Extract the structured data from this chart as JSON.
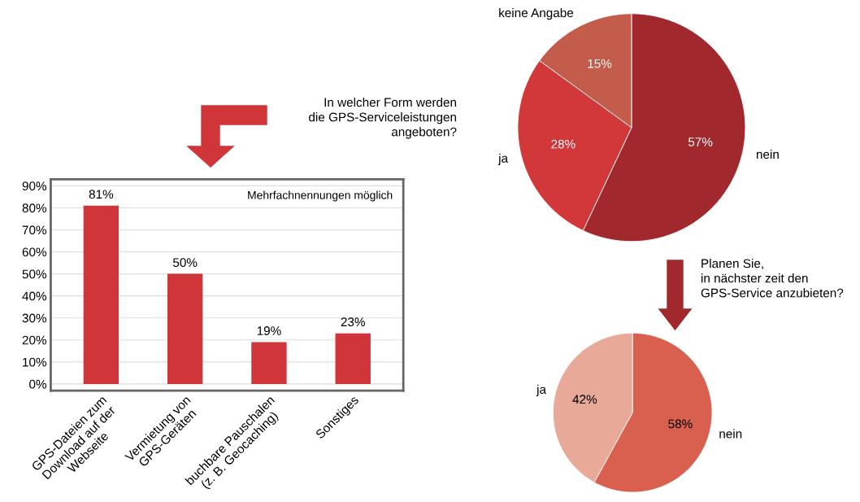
{
  "chart_data": [
    {
      "type": "bar",
      "title": "In welcher Form werden\ndie GPS-Serviceleistungen\nangeboten?",
      "categories": [
        "GPS-Dateien zum\nDownload auf der\nWebseite",
        "Vermietung von\nGPS-Geräten",
        "buchbare Pauschalen\n(z. B. Geocaching)",
        "Sonstiges"
      ],
      "values": [
        81,
        50,
        19,
        23
      ],
      "color": "#d0353a",
      "value_labels": [
        "81%",
        "50%",
        "19%",
        "23%"
      ],
      "ylim": [
        -3,
        93
      ],
      "yticks": [
        {
          "value": 0,
          "label": "0%"
        },
        {
          "value": 10,
          "label": "10%"
        },
        {
          "value": 20,
          "label": "20%"
        },
        {
          "value": 30,
          "label": "30%"
        },
        {
          "value": 40,
          "label": "40%"
        },
        {
          "value": 50,
          "label": "50%"
        },
        {
          "value": 60,
          "label": "60%"
        },
        {
          "value": 70,
          "label": "70%"
        },
        {
          "value": 80,
          "label": "80%"
        },
        {
          "value": 90,
          "label": "90%"
        }
      ],
      "grid": "y",
      "annotations": [
        "Mehrfachnennungen möglich"
      ]
    },
    {
      "type": "pie",
      "categories": [
        "nein",
        "ja",
        "keine Angabe"
      ],
      "values": [
        57,
        28,
        15
      ],
      "colors": [
        "#a1292d",
        "#d2373a",
        "#c45c4b"
      ],
      "value_labels": [
        "57%",
        "28%",
        "15%"
      ]
    },
    {
      "type": "pie",
      "title": "Planen Sie,\nin nächster zeit den\nGPS-Service anzubieten?",
      "categories": [
        "nein",
        "ja"
      ],
      "values": [
        58,
        42
      ],
      "colors": [
        "#d9604f",
        "#e8a999"
      ],
      "value_labels": [
        "58%",
        "42%"
      ]
    }
  ]
}
